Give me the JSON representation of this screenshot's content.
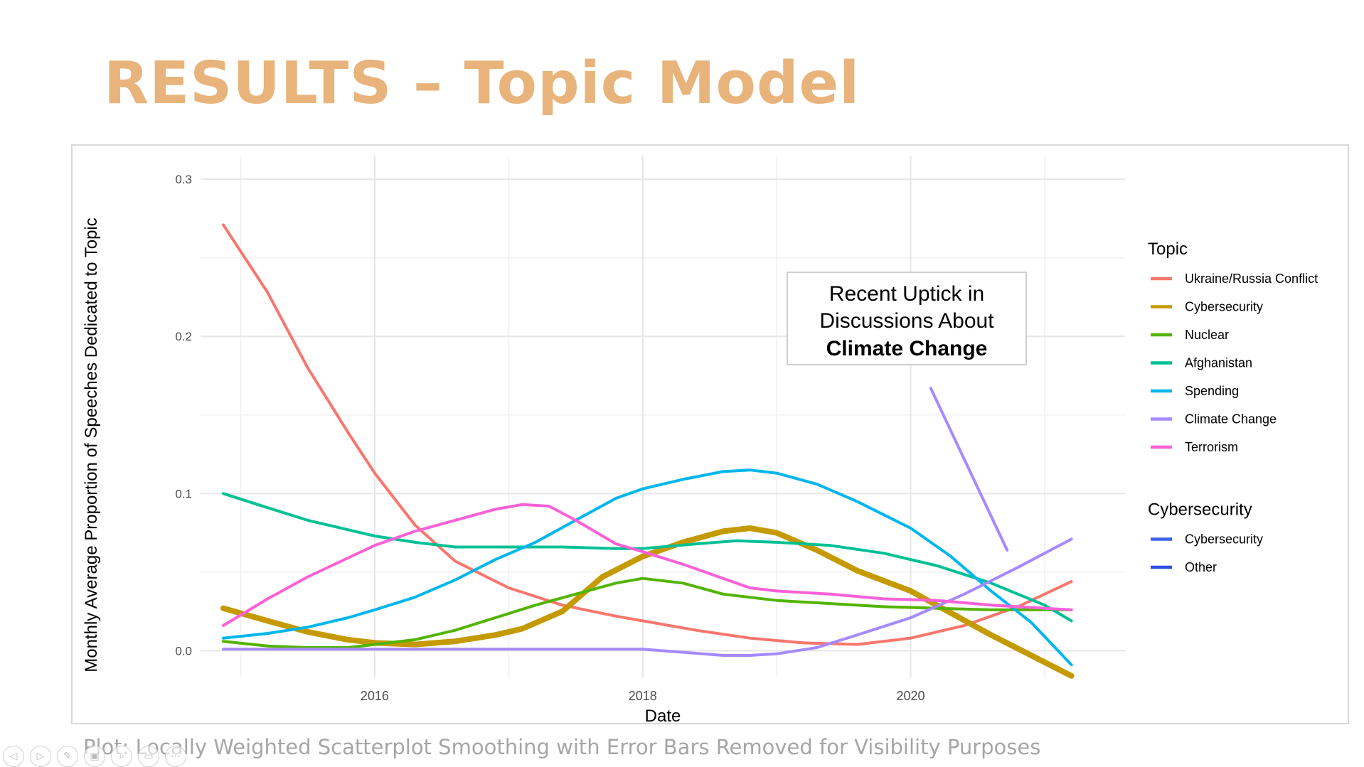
{
  "slide": {
    "title": "RESULTS – Topic Model",
    "caption": "Plot: Locally Weighted Scatterplot Smoothing with Error Bars Removed for Visibility Purposes"
  },
  "nav_icons": [
    "previous-slide-icon",
    "next-slide-icon",
    "pen-icon",
    "slides-icon",
    "zoom-icon",
    "screen-icon",
    "more-icon"
  ],
  "chart_data": {
    "type": "line",
    "xlabel": "Date",
    "ylabel": "Monthly Average Proportion of Speeches Dedicated to Topic",
    "xlim": [
      2014.7,
      2021.6
    ],
    "ylim": [
      -0.017,
      0.315
    ],
    "x_ticks": [
      2016,
      2018,
      2020
    ],
    "y_ticks": [
      0.0,
      0.1,
      0.2,
      0.3
    ],
    "y_tick_labels": [
      "0.0",
      "0.1",
      "0.2",
      "0.3"
    ],
    "x_tick_labels": [
      "2016",
      "2018",
      "2020"
    ],
    "grid": true,
    "legend_position": "right",
    "legend": [
      {
        "title": "Topic",
        "entries": [
          "Ukraine/Russia Conflict",
          "Cybersecurity",
          "Nuclear",
          "Afghanistan",
          "Spending",
          "Climate Change",
          "Terrorism"
        ]
      },
      {
        "title": "Cybersecurity",
        "entries": [
          "Cybersecurity",
          "Other"
        ]
      }
    ],
    "series": [
      {
        "name": "Ukraine/Russia Conflict",
        "color": "#f8766d",
        "width": 4,
        "x": [
          2014.87,
          2015.2,
          2015.5,
          2015.8,
          2016.0,
          2016.3,
          2016.6,
          2017.0,
          2017.4,
          2017.8,
          2018.0,
          2018.4,
          2018.8,
          2019.2,
          2019.6,
          2020.0,
          2020.4,
          2020.8,
          2021.2
        ],
        "y": [
          0.271,
          0.228,
          0.18,
          0.139,
          0.113,
          0.08,
          0.057,
          0.04,
          0.029,
          0.022,
          0.019,
          0.013,
          0.008,
          0.005,
          0.004,
          0.008,
          0.016,
          0.028,
          0.044
        ]
      },
      {
        "name": "Cybersecurity",
        "color": "#c49a00",
        "width": 8,
        "x": [
          2014.87,
          2015.2,
          2015.5,
          2015.8,
          2016.0,
          2016.3,
          2016.6,
          2016.9,
          2017.1,
          2017.4,
          2017.7,
          2018.0,
          2018.3,
          2018.6,
          2018.8,
          2019.0,
          2019.3,
          2019.6,
          2020.0,
          2020.3,
          2020.6,
          2020.9,
          2021.2
        ],
        "y": [
          0.027,
          0.019,
          0.012,
          0.007,
          0.005,
          0.004,
          0.006,
          0.01,
          0.014,
          0.025,
          0.047,
          0.06,
          0.069,
          0.076,
          0.078,
          0.075,
          0.064,
          0.051,
          0.038,
          0.024,
          0.01,
          -0.003,
          -0.016
        ]
      },
      {
        "name": "Nuclear",
        "color": "#53b400",
        "width": 4,
        "x": [
          2014.87,
          2015.2,
          2015.5,
          2015.8,
          2016.0,
          2016.3,
          2016.6,
          2016.9,
          2017.2,
          2017.5,
          2017.8,
          2018.0,
          2018.3,
          2018.6,
          2019.0,
          2019.4,
          2019.8,
          2020.2,
          2020.6,
          2021.2
        ],
        "y": [
          0.006,
          0.003,
          0.002,
          0.002,
          0.004,
          0.007,
          0.013,
          0.021,
          0.029,
          0.036,
          0.043,
          0.046,
          0.043,
          0.036,
          0.032,
          0.03,
          0.028,
          0.027,
          0.026,
          0.026
        ]
      },
      {
        "name": "Afghanistan",
        "color": "#00c094",
        "width": 4,
        "x": [
          2014.87,
          2015.2,
          2015.5,
          2015.8,
          2016.0,
          2016.3,
          2016.6,
          2017.0,
          2017.4,
          2017.8,
          2018.0,
          2018.4,
          2018.7,
          2019.0,
          2019.4,
          2019.8,
          2020.2,
          2020.6,
          2021.0,
          2021.2
        ],
        "y": [
          0.1,
          0.091,
          0.083,
          0.077,
          0.073,
          0.069,
          0.066,
          0.066,
          0.066,
          0.065,
          0.065,
          0.068,
          0.07,
          0.069,
          0.067,
          0.062,
          0.054,
          0.043,
          0.029,
          0.019
        ]
      },
      {
        "name": "Spending",
        "color": "#00b6eb",
        "width": 4,
        "x": [
          2014.87,
          2015.2,
          2015.5,
          2015.8,
          2016.0,
          2016.3,
          2016.6,
          2016.9,
          2017.2,
          2017.5,
          2017.8,
          2018.0,
          2018.3,
          2018.6,
          2018.8,
          2019.0,
          2019.3,
          2019.6,
          2020.0,
          2020.3,
          2020.6,
          2020.9,
          2021.2
        ],
        "y": [
          0.008,
          0.011,
          0.015,
          0.021,
          0.026,
          0.034,
          0.045,
          0.058,
          0.069,
          0.083,
          0.097,
          0.103,
          0.109,
          0.114,
          0.115,
          0.113,
          0.106,
          0.095,
          0.078,
          0.06,
          0.038,
          0.018,
          -0.009
        ]
      },
      {
        "name": "Climate Change",
        "color": "#a58aff",
        "width": 4,
        "x": [
          2014.87,
          2015.5,
          2016.0,
          2016.5,
          2017.0,
          2017.5,
          2018.0,
          2018.3,
          2018.6,
          2018.8,
          2019.0,
          2019.3,
          2019.6,
          2020.0,
          2020.4,
          2020.8,
          2021.2
        ],
        "y": [
          0.001,
          0.001,
          0.001,
          0.001,
          0.001,
          0.001,
          0.001,
          -0.001,
          -0.003,
          -0.003,
          -0.002,
          0.002,
          0.01,
          0.021,
          0.036,
          0.053,
          0.071
        ]
      },
      {
        "name": "Climate Change (annotation)",
        "color": "#a58aff",
        "width": 4,
        "x": [
          2020.15,
          2020.72
        ],
        "y": [
          0.167,
          0.064
        ]
      },
      {
        "name": "Terrorism",
        "color": "#fb61d7",
        "width": 4,
        "x": [
          2014.87,
          2015.2,
          2015.5,
          2015.8,
          2016.0,
          2016.3,
          2016.6,
          2016.9,
          2017.1,
          2017.3,
          2017.5,
          2017.8,
          2018.0,
          2018.3,
          2018.6,
          2018.8,
          2019.0,
          2019.4,
          2019.8,
          2020.2,
          2020.6,
          2021.2
        ],
        "y": [
          0.016,
          0.033,
          0.047,
          0.059,
          0.067,
          0.076,
          0.083,
          0.09,
          0.093,
          0.092,
          0.083,
          0.068,
          0.063,
          0.055,
          0.046,
          0.04,
          0.038,
          0.036,
          0.033,
          0.032,
          0.029,
          0.026
        ]
      }
    ],
    "annotation": {
      "line1": "Recent Uptick in",
      "line2": "Discussions About",
      "line3": "Climate Change"
    }
  },
  "legend_colors": {
    "topic": [
      "#f8766d",
      "#c49a00",
      "#53b400",
      "#00c094",
      "#00b6eb",
      "#a58aff",
      "#fb61d7"
    ],
    "cyber": [
      "#3b63f0",
      "#2d4fe0"
    ]
  }
}
